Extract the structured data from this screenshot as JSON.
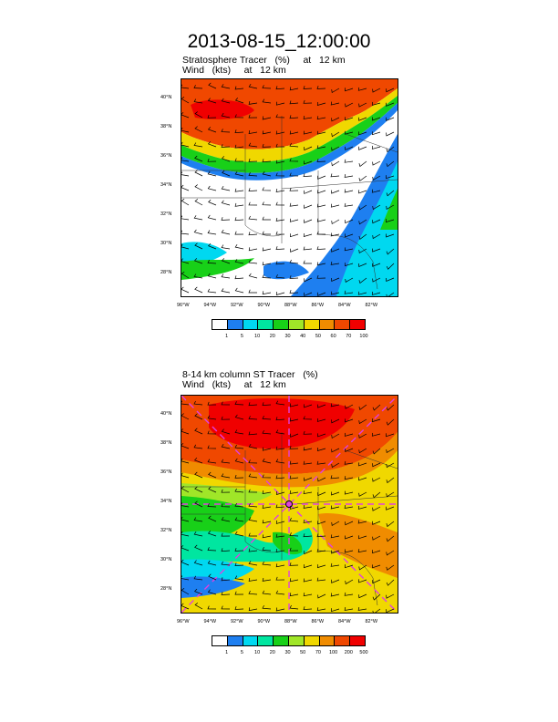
{
  "main_title": "2013-08-15_12:00:00",
  "panel1": {
    "title_line1": "Stratosphere Tracer   (%)     at   12 km",
    "title_line2": "Wind   (kts)     at   12 km",
    "lat_ticks": [
      "40°N",
      "38°N",
      "36°N",
      "34°N",
      "32°N",
      "30°N",
      "28°N"
    ],
    "lon_ticks": [
      "96°W",
      "94°W",
      "92°W",
      "90°W",
      "88°W",
      "86°W",
      "84°W",
      "82°W"
    ],
    "colorbar": {
      "colors": [
        "#ffffff",
        "#1e7ff0",
        "#00d8f0",
        "#00e6a0",
        "#18d018",
        "#a0e628",
        "#f0d800",
        "#f08c00",
        "#f04800",
        "#f00000"
      ],
      "labels": [
        "1",
        "5",
        "10",
        "20",
        "30",
        "40",
        "50",
        "60",
        "70",
        "100"
      ]
    }
  },
  "panel2": {
    "title_line1": "8-14 km column ST Tracer   (%)",
    "title_line2": "Wind   (kts)     at   12 km",
    "lat_ticks": [
      "40°N",
      "38°N",
      "36°N",
      "34°N",
      "32°N",
      "30°N",
      "28°N"
    ],
    "lon_ticks": [
      "96°W",
      "94°W",
      "92°W",
      "90°W",
      "88°W",
      "86°W",
      "84°W",
      "82°W"
    ],
    "colorbar": {
      "colors": [
        "#ffffff",
        "#1e7ff0",
        "#00d8f0",
        "#00e6a0",
        "#18d018",
        "#a0e628",
        "#f0d800",
        "#f08c00",
        "#f04800",
        "#f00000"
      ],
      "labels": [
        "1",
        "5",
        "10",
        "20",
        "30",
        "50",
        "70",
        "100",
        "200",
        "500"
      ]
    }
  }
}
